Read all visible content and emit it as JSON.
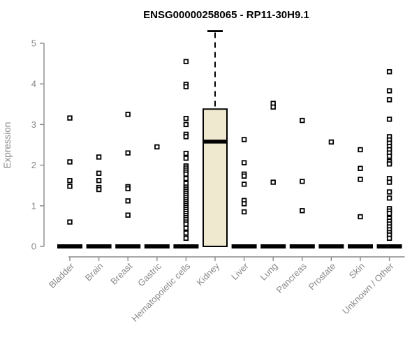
{
  "chart_data": {
    "type": "boxplot",
    "title": "ENSG00000258065 - RP11-30H9.1",
    "ylabel": "Expression",
    "xlabel": "",
    "ylim": [
      0,
      5.35
    ],
    "yticks": [
      0,
      1,
      2,
      3,
      4,
      5
    ],
    "grid": false,
    "legend": "none",
    "marker": "open-square",
    "categories": [
      "Bladder",
      "Brain",
      "Breast",
      "Gastric",
      "Hematopoietic cells",
      "Kidney",
      "Liver",
      "Lung",
      "Pancreas",
      "Prostate",
      "Skin",
      "Unknown / Other"
    ],
    "groups": [
      {
        "category": "Bladder",
        "q1": 0,
        "median": 0,
        "q3": 0,
        "whisker_low": 0,
        "whisker_high": 0,
        "outliers": [
          3.16,
          2.08,
          1.62,
          1.48,
          0.6
        ]
      },
      {
        "category": "Brain",
        "q1": 0,
        "median": 0,
        "q3": 0,
        "whisker_low": 0,
        "whisker_high": 0,
        "outliers": [
          2.2,
          1.8,
          1.62,
          1.45,
          1.4
        ]
      },
      {
        "category": "Breast",
        "q1": 0,
        "median": 0,
        "q3": 0,
        "whisker_low": 0,
        "whisker_high": 0,
        "outliers": [
          3.25,
          2.3,
          1.47,
          1.42,
          1.12,
          0.77
        ]
      },
      {
        "category": "Gastric",
        "q1": 0,
        "median": 0,
        "q3": 0,
        "whisker_low": 0,
        "whisker_high": 0,
        "outliers": [
          2.45
        ]
      },
      {
        "category": "Hematopoietic cells",
        "q1": 0,
        "median": 0,
        "q3": 0,
        "whisker_low": 0,
        "whisker_high": 0,
        "outliers": [
          4.55,
          3.99,
          3.93,
          3.15,
          3.0,
          2.76,
          2.7,
          2.29,
          2.17,
          1.98,
          1.93,
          1.88,
          1.83,
          1.78,
          1.67,
          1.55,
          1.46,
          1.41,
          1.36,
          1.31,
          1.26,
          1.21,
          1.16,
          1.11,
          1.06,
          1.01,
          0.96,
          0.91,
          0.86,
          0.81,
          0.76,
          0.71,
          0.66,
          0.6,
          0.55,
          0.45,
          0.33,
          0.2
        ]
      },
      {
        "category": "Kidney",
        "q1": 0,
        "median": 2.58,
        "q3": 3.38,
        "whisker_low": 0,
        "whisker_high": 5.3,
        "outliers": []
      },
      {
        "category": "Liver",
        "q1": 0,
        "median": 0,
        "q3": 0,
        "whisker_low": 0,
        "whisker_high": 0,
        "outliers": [
          2.63,
          2.06,
          1.78,
          1.73,
          1.53,
          1.13,
          1.05,
          0.85
        ]
      },
      {
        "category": "Lung",
        "q1": 0,
        "median": 0,
        "q3": 0,
        "whisker_low": 0,
        "whisker_high": 0,
        "outliers": [
          3.52,
          3.43,
          1.58
        ]
      },
      {
        "category": "Pancreas",
        "q1": 0,
        "median": 0,
        "q3": 0,
        "whisker_low": 0,
        "whisker_high": 0,
        "outliers": [
          3.1,
          1.6,
          0.88
        ]
      },
      {
        "category": "Prostate",
        "q1": 0,
        "median": 0,
        "q3": 0,
        "whisker_low": 0,
        "whisker_high": 0,
        "outliers": [
          2.57
        ]
      },
      {
        "category": "Skin",
        "q1": 0,
        "median": 0,
        "q3": 0,
        "whisker_low": 0,
        "whisker_high": 0,
        "outliers": [
          2.38,
          1.92,
          1.65,
          0.73
        ]
      },
      {
        "category": "Unknown / Other",
        "q1": 0,
        "median": 0,
        "q3": 0,
        "whisker_low": 0,
        "whisker_high": 0,
        "outliers": [
          4.3,
          3.83,
          3.61,
          3.13,
          2.7,
          2.62,
          2.54,
          2.46,
          2.38,
          2.3,
          2.22,
          2.09,
          2.03,
          1.67,
          1.58,
          1.34,
          1.19,
          0.93,
          0.87,
          0.81,
          0.69,
          0.62,
          0.55,
          0.48,
          0.41,
          0.34,
          0.28,
          0.2
        ]
      }
    ]
  },
  "style": {
    "box_fill": "#EFE9CF",
    "box_stroke": "#000000",
    "median_color": "#000000",
    "point_color": "#000000",
    "point_fill": "#FFFFFF",
    "whisker_color": "#000000",
    "axis_color": "#8A8A8A",
    "label_color": "#8A8A8A",
    "title_color": "#000000",
    "background": "#FFFFFF"
  }
}
